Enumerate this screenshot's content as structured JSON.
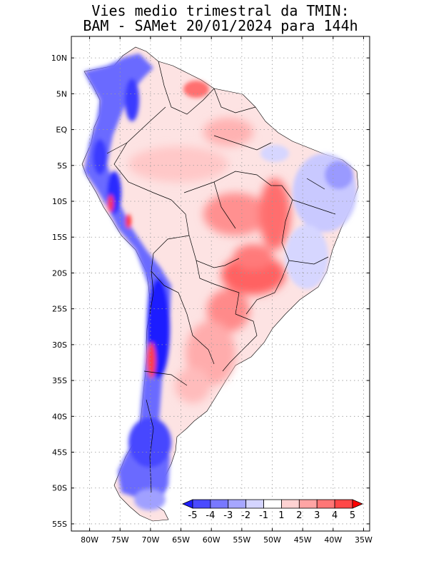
{
  "header": {
    "title_line1": "Vies medio trimestral da TMIN:",
    "title_line2": "BAM - SAMet 20/01/2024  para 144h"
  },
  "map": {
    "lon_range": [
      -83,
      -34
    ],
    "lat_range": [
      -56,
      13
    ],
    "grid": true,
    "x_ticks": [
      {
        "value": -80,
        "label": "80W"
      },
      {
        "value": -75,
        "label": "75W"
      },
      {
        "value": -70,
        "label": "70W"
      },
      {
        "value": -65,
        "label": "65W"
      },
      {
        "value": -60,
        "label": "60W"
      },
      {
        "value": -55,
        "label": "55W"
      },
      {
        "value": -50,
        "label": "50W"
      },
      {
        "value": -45,
        "label": "45W"
      },
      {
        "value": -40,
        "label": "40W"
      },
      {
        "value": -35,
        "label": "35W"
      }
    ],
    "y_ticks": [
      {
        "value": 10,
        "label": "10N"
      },
      {
        "value": 5,
        "label": "5N"
      },
      {
        "value": 0,
        "label": "EQ"
      },
      {
        "value": -5,
        "label": "5S"
      },
      {
        "value": -10,
        "label": "10S"
      },
      {
        "value": -15,
        "label": "15S"
      },
      {
        "value": -20,
        "label": "20S"
      },
      {
        "value": -25,
        "label": "25S"
      },
      {
        "value": -30,
        "label": "30S"
      },
      {
        "value": -35,
        "label": "35S"
      },
      {
        "value": -40,
        "label": "40S"
      },
      {
        "value": -45,
        "label": "45S"
      },
      {
        "value": -50,
        "label": "50S"
      },
      {
        "value": -55,
        "label": "55S"
      }
    ]
  },
  "colorbar": {
    "labels": [
      "-5",
      "-4",
      "-3",
      "-2",
      "-1",
      "1",
      "2",
      "3",
      "4",
      "5"
    ],
    "colors": [
      "#1e1eff",
      "#4a4aff",
      "#7878ff",
      "#a6a6ff",
      "#d4d4ff",
      "#ffffff",
      "#ffd2d2",
      "#ffa4a4",
      "#ff7676",
      "#ff4848",
      "#ff0000"
    ]
  }
}
